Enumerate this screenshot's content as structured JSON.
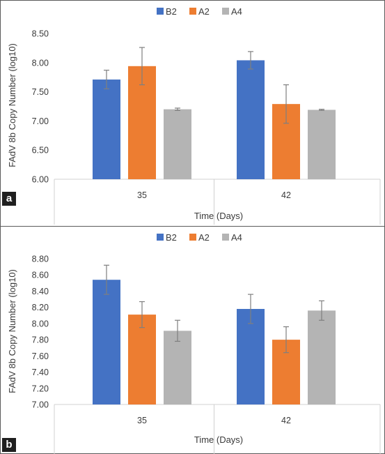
{
  "panels": [
    {
      "tag": "a",
      "chart_data": {
        "type": "bar",
        "categories": [
          "35",
          "42"
        ],
        "series": [
          {
            "name": "B2",
            "values": [
              7.71,
              8.04
            ],
            "errors": [
              0.16,
              0.15
            ]
          },
          {
            "name": "A2",
            "values": [
              7.94,
              7.29
            ],
            "errors": [
              0.32,
              0.33
            ]
          },
          {
            "name": "A4",
            "values": [
              7.2,
              7.19
            ],
            "errors": [
              0.02,
              0.01
            ]
          }
        ],
        "ylim": [
          6.0,
          8.5
        ],
        "yticks": [
          "6.00",
          "6.50",
          "7.00",
          "7.50",
          "8.00",
          "8.50"
        ],
        "ylabel": "FAdV 8b Copy Number  (log10)",
        "xlabel": "Time (Days)",
        "legend_position": "top-center",
        "grid": false
      }
    },
    {
      "tag": "b",
      "chart_data": {
        "type": "bar",
        "categories": [
          "35",
          "42"
        ],
        "series": [
          {
            "name": "B2",
            "values": [
              8.54,
              8.18
            ],
            "errors": [
              0.18,
              0.18
            ]
          },
          {
            "name": "A2",
            "values": [
              8.11,
              7.8
            ],
            "errors": [
              0.16,
              0.16
            ]
          },
          {
            "name": "A4",
            "values": [
              7.91,
              8.16
            ],
            "errors": [
              0.13,
              0.12
            ]
          }
        ],
        "ylim": [
          7.0,
          8.8
        ],
        "yticks": [
          "7.00",
          "7.20",
          "7.40",
          "7.60",
          "7.80",
          "8.00",
          "8.20",
          "8.40",
          "8.60",
          "8.80"
        ],
        "ylabel": "FAdV 8b Copy Number  (log10)",
        "xlabel": "Time (Days)",
        "legend_position": "top-center",
        "grid": false
      }
    }
  ],
  "colors": {
    "B2": "#4472c4",
    "A2": "#ed7d31",
    "A4": "#b4b4b4",
    "error_bar": "#7f7f7f",
    "axis": "#d0d0d0"
  }
}
